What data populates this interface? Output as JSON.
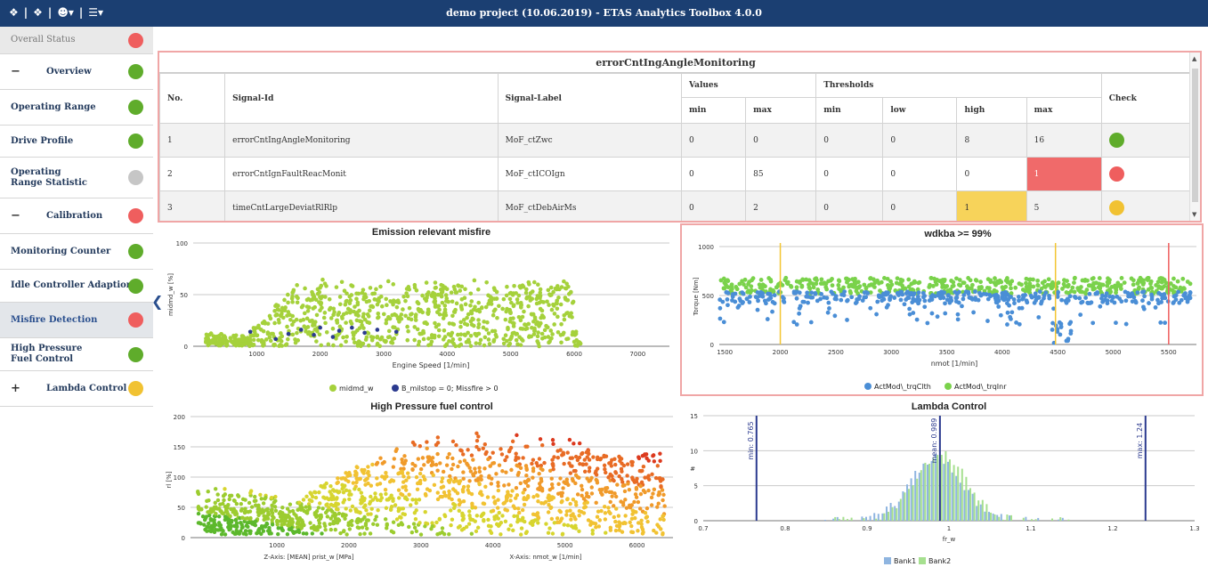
{
  "topbar": {
    "icons": [
      "info-icon",
      "alert-icon",
      "user-icon",
      "menu-icon"
    ],
    "title": "demo project  (10.06.2019) -  ETAS Analytics Toolbox  4.0.0"
  },
  "sidebar": {
    "items": [
      {
        "label": "Overall Status",
        "status": "#ef5e5e"
      },
      {
        "label": "Overview",
        "status": "#5fac2b",
        "sign": "−"
      },
      {
        "label": "Operating Range",
        "status": "#5fac2b"
      },
      {
        "label": "Drive Profile",
        "status": "#5fac2b"
      },
      {
        "label": "Operating Range Statistic",
        "status": "#c6c6c6"
      },
      {
        "label": "Calibration",
        "status": "#ef5e5e",
        "sign": "−"
      },
      {
        "label": "Monitoring Counter",
        "status": "#5fac2b"
      },
      {
        "label": "Idle Controller Adaption",
        "status": "#5fac2b"
      },
      {
        "label": "Misfire Detection",
        "status": "#ef5e5e"
      },
      {
        "label": "High Pressure Fuel Control",
        "status": "#5fac2b"
      },
      {
        "label": "Lambda Control",
        "status": "#f1c232",
        "sign": "+"
      }
    ]
  },
  "table": {
    "title": "errorCntIngAngleMonitoring",
    "headers": {
      "no": "No.",
      "signal_id": "Signal-Id",
      "signal_label": "Signal-Label",
      "values": "Values",
      "thresholds": "Thresholds",
      "check": "Check",
      "min": "min",
      "max": "max",
      "tmin": "min",
      "low": "low",
      "high": "high",
      "tmax": "max"
    },
    "rows": [
      {
        "no": "1",
        "id": "errorCntIngAngleMonitoring",
        "label": "MoF_ctZwc",
        "vmin": "0",
        "vmax": "0",
        "tmin": "0",
        "low": "0",
        "high": "8",
        "tmax": "16",
        "check": "#5fac2b"
      },
      {
        "no": "2",
        "id": "errorCntIgnFaultReacMonit",
        "label": "MoF_ctICOIgn",
        "vmin": "0",
        "vmax": "85",
        "tmin": "0",
        "low": "0",
        "high": "0",
        "tmax": "1",
        "check": "#ef5e5e"
      },
      {
        "no": "3",
        "id": "timeCntLargeDeviatRlRlp",
        "label": "MoF_ctDebAirMs",
        "vmin": "0",
        "vmax": "2",
        "tmin": "0",
        "low": "0",
        "high": "1",
        "tmax": "5",
        "check": "#f1c232"
      }
    ],
    "highlight": {
      "red": "#f06a6a",
      "yellow": "#f7d35a"
    }
  },
  "chart_data": [
    {
      "type": "scatter",
      "title": "Emission relevant misfire",
      "xlabel": "Engine Speed [1/min]",
      "ylabel": "midmd_w [%]",
      "xlim": [
        0,
        7500
      ],
      "ylim": [
        0,
        100
      ],
      "xticks": [
        "1000",
        "2000",
        "3000",
        "4000",
        "5000",
        "6000",
        "7000"
      ],
      "yticks": [
        "0",
        "50",
        "100"
      ],
      "series": [
        {
          "name": "midmd_w",
          "color": "#a5d13b"
        },
        {
          "name": "B_milstop = 0; Missfire > 0",
          "color": "#2b3a8f",
          "points": [
            [
              900,
              14
            ],
            [
              1300,
              7
            ],
            [
              1500,
              12
            ],
            [
              1700,
              16
            ],
            [
              1900,
              11
            ],
            [
              2000,
              18
            ],
            [
              2200,
              9
            ],
            [
              2300,
              15
            ],
            [
              2500,
              18
            ],
            [
              2700,
              13
            ],
            [
              2900,
              16
            ],
            [
              3200,
              14
            ]
          ]
        }
      ]
    },
    {
      "type": "scatter",
      "title": "wdkba >= 99%",
      "xlabel": "nmot [1/min]",
      "ylabel": "Torque [Nm]",
      "xlim": [
        1450,
        5750
      ],
      "ylim": [
        0,
        1000
      ],
      "xticks": [
        "1500",
        "2000",
        "2500",
        "3000",
        "3500",
        "4000",
        "4500",
        "5000",
        "5500"
      ],
      "yticks": [
        "0",
        "500",
        "1000"
      ],
      "vlines": [
        {
          "x": 2000,
          "color": "#f3c531"
        },
        {
          "x": 4480,
          "color": "#f3c531"
        },
        {
          "x": 5500,
          "color": "#ef5e5e"
        }
      ],
      "series": [
        {
          "name": "ActMod\\_trqClth",
          "color": "#4a8ed6"
        },
        {
          "name": "ActMod\\_trqInr",
          "color": "#7ad24b"
        }
      ]
    },
    {
      "type": "scatter",
      "title": "High Pressure fuel control",
      "ylabel": "rl [%]",
      "xlim": [
        -200,
        6500
      ],
      "ylim": [
        0,
        200
      ],
      "xticks": [
        "1000",
        "2000",
        "3000",
        "4000",
        "5000",
        "6000"
      ],
      "yticks": [
        "0",
        "50",
        "100",
        "150",
        "200"
      ],
      "zlabel": "Z-Axis: [MEAN] prist_w [MPa]",
      "xlabel": "X-Axis: nmot_w [1/min]"
    },
    {
      "type": "bar",
      "title": "Lambda Control",
      "xlabel": "fr_w",
      "ylabel": "#",
      "xlim": [
        0.7,
        1.3
      ],
      "ylim": [
        0,
        15
      ],
      "xticks": [
        "0.7",
        "0.8",
        "0.9",
        "1",
        "1.1",
        "1.2",
        "1.3"
      ],
      "yticks": [
        "0",
        "5",
        "10",
        "15"
      ],
      "markers": [
        {
          "x": 0.765,
          "label": "min: 0.765"
        },
        {
          "x": 0.989,
          "label": "mean: 0.989"
        },
        {
          "x": 1.24,
          "label": "max: 1.24"
        }
      ],
      "series": [
        {
          "name": "Bank1",
          "color": "#8fb5e0"
        },
        {
          "name": "Bank2",
          "color": "#a6e08f"
        }
      ]
    }
  ]
}
